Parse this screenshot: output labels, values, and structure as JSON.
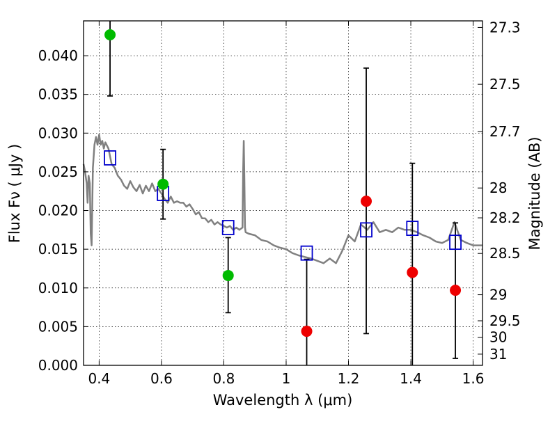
{
  "chart_data": {
    "type": "scatter",
    "x": {
      "label": "Wavelength  λ (μm)",
      "lim": [
        0.35,
        1.63
      ],
      "ticks": [
        "0.4",
        "0.6",
        "0.8",
        "1",
        "1.2",
        "1.4",
        "1.6"
      ],
      "tick_values": [
        0.4,
        0.6,
        0.8,
        1.0,
        1.2,
        1.4,
        1.6
      ]
    },
    "y_left": {
      "label": "Flux  Fν  ( μJy )",
      "lim": [
        0,
        0.0445
      ],
      "ticks": [
        "0.000",
        "0.005",
        "0.010",
        "0.015",
        "0.020",
        "0.025",
        "0.030",
        "0.035",
        "0.040"
      ],
      "tick_values": [
        0,
        0.005,
        0.01,
        0.015,
        0.02,
        0.025,
        0.03,
        0.035,
        0.04
      ]
    },
    "y_right": {
      "label": "Magnitude (AB)",
      "ticks": [
        "27.3",
        "27.5",
        "27.7",
        "28",
        "28.2",
        "28.5",
        "29",
        "29.5",
        "30",
        "31"
      ],
      "tick_values": [
        27.3,
        27.5,
        27.7,
        28.0,
        28.2,
        28.5,
        29.0,
        29.5,
        30.0,
        31.0
      ],
      "zero_point": 23.9
    },
    "grid": true,
    "series": [
      {
        "role": "model-spectrum",
        "kind": "line",
        "color": "#808080",
        "x": [
          0.35,
          0.355,
          0.36,
          0.363,
          0.366,
          0.37,
          0.373,
          0.376,
          0.38,
          0.385,
          0.39,
          0.395,
          0.4,
          0.405,
          0.41,
          0.415,
          0.42,
          0.43,
          0.44,
          0.45,
          0.46,
          0.47,
          0.48,
          0.49,
          0.5,
          0.51,
          0.52,
          0.53,
          0.54,
          0.55,
          0.56,
          0.57,
          0.58,
          0.59,
          0.6,
          0.61,
          0.62,
          0.63,
          0.64,
          0.65,
          0.66,
          0.67,
          0.68,
          0.69,
          0.7,
          0.71,
          0.72,
          0.73,
          0.74,
          0.75,
          0.76,
          0.77,
          0.78,
          0.79,
          0.8,
          0.81,
          0.82,
          0.83,
          0.84,
          0.85,
          0.86,
          0.862,
          0.864,
          0.866,
          0.868,
          0.87,
          0.88,
          0.9,
          0.92,
          0.94,
          0.96,
          0.98,
          1.0,
          1.02,
          1.04,
          1.06,
          1.08,
          1.1,
          1.12,
          1.14,
          1.16,
          1.18,
          1.2,
          1.22,
          1.24,
          1.26,
          1.28,
          1.3,
          1.32,
          1.34,
          1.36,
          1.38,
          1.4,
          1.42,
          1.44,
          1.46,
          1.48,
          1.5,
          1.52,
          1.54,
          1.56,
          1.58,
          1.6,
          1.63
        ],
        "y": [
          0.026,
          0.025,
          0.0235,
          0.021,
          0.0245,
          0.0235,
          0.017,
          0.0155,
          0.0255,
          0.0285,
          0.0295,
          0.0285,
          0.0298,
          0.0285,
          0.029,
          0.028,
          0.0288,
          0.028,
          0.026,
          0.0255,
          0.0245,
          0.024,
          0.0232,
          0.0228,
          0.0238,
          0.023,
          0.0225,
          0.0233,
          0.0222,
          0.0232,
          0.0225,
          0.0235,
          0.0225,
          0.0228,
          0.0222,
          0.0215,
          0.021,
          0.0218,
          0.021,
          0.0212,
          0.021,
          0.021,
          0.0205,
          0.0208,
          0.0202,
          0.0195,
          0.0198,
          0.019,
          0.019,
          0.0185,
          0.0188,
          0.0182,
          0.0185,
          0.0182,
          0.018,
          0.0178,
          0.018,
          0.0175,
          0.0178,
          0.0175,
          0.0178,
          0.025,
          0.029,
          0.024,
          0.0178,
          0.0172,
          0.017,
          0.0168,
          0.0162,
          0.016,
          0.0155,
          0.0152,
          0.015,
          0.0145,
          0.0142,
          0.014,
          0.0138,
          0.0135,
          0.0132,
          0.0138,
          0.0132,
          0.0148,
          0.0168,
          0.016,
          0.0182,
          0.0175,
          0.0185,
          0.0172,
          0.0175,
          0.0172,
          0.0178,
          0.0175,
          0.0175,
          0.0172,
          0.0168,
          0.0165,
          0.016,
          0.0158,
          0.0162,
          0.0185,
          0.0162,
          0.0158,
          0.0155,
          0.0155
        ]
      },
      {
        "role": "model-photometry",
        "kind": "open-square",
        "color": "#0000cc",
        "x": [
          0.435,
          0.605,
          0.814,
          1.066,
          1.257,
          1.405,
          1.543
        ],
        "y": [
          0.0268,
          0.0222,
          0.0178,
          0.0145,
          0.0175,
          0.0177,
          0.0159
        ]
      },
      {
        "role": "detections",
        "kind": "filled-circle",
        "color": "#00bb00",
        "x": [
          0.435,
          0.605,
          0.814
        ],
        "y": [
          0.0427,
          0.0234,
          0.0116
        ],
        "err_low": [
          0.0348,
          0.0189,
          0.0068
        ],
        "err_high": [
          0.0445,
          0.0279,
          0.0165
        ]
      },
      {
        "role": "limits",
        "kind": "filled-circle",
        "color": "#ee0000",
        "x": [
          1.066,
          1.257,
          1.405,
          1.543
        ],
        "y": [
          0.0044,
          0.0212,
          0.012,
          0.0097
        ],
        "err_low": [
          0.0,
          0.0041,
          0.0,
          0.0009
        ],
        "err_high": [
          0.0137,
          0.0384,
          0.0261,
          0.0184
        ]
      }
    ]
  }
}
